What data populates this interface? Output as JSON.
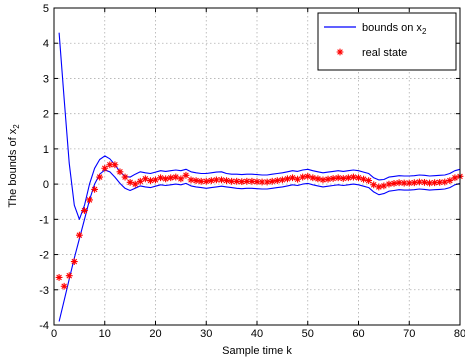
{
  "chart_data": {
    "type": "line",
    "title": "",
    "xlabel": "Sample time k",
    "ylabel": "The bounds of x",
    "ylabel_subscript": "2",
    "xlim": [
      0,
      80
    ],
    "ylim": [
      -4,
      5
    ],
    "xticks": [
      "0",
      "10",
      "20",
      "30",
      "40",
      "50",
      "60",
      "70",
      "80"
    ],
    "yticks": [
      "-4",
      "-3",
      "-2",
      "-1",
      "0",
      "1",
      "2",
      "3",
      "4",
      "5"
    ],
    "grid": true,
    "legend_position": "top-right",
    "colors": {
      "bounds": "#0000ff",
      "real_state": "#ff0000"
    },
    "x": [
      1,
      2,
      3,
      4,
      5,
      6,
      7,
      8,
      9,
      10,
      11,
      12,
      13,
      14,
      15,
      16,
      17,
      18,
      19,
      20,
      21,
      22,
      23,
      24,
      25,
      26,
      27,
      28,
      29,
      30,
      31,
      32,
      33,
      34,
      35,
      36,
      37,
      38,
      39,
      40,
      41,
      42,
      43,
      44,
      45,
      46,
      47,
      48,
      49,
      50,
      51,
      52,
      53,
      54,
      55,
      56,
      57,
      58,
      59,
      60,
      61,
      62,
      63,
      64,
      65,
      66,
      67,
      68,
      69,
      70,
      71,
      72,
      73,
      74,
      75,
      76,
      77,
      78,
      79,
      80
    ],
    "series": [
      {
        "name": "bounds on x",
        "name_subscript": "2",
        "kind": "upper-bound",
        "marker": "line",
        "values": [
          4.3,
          2.4,
          0.6,
          -0.6,
          -1.0,
          -0.6,
          0.0,
          0.45,
          0.7,
          0.8,
          0.72,
          0.55,
          0.35,
          0.22,
          0.2,
          0.28,
          0.35,
          0.32,
          0.3,
          0.34,
          0.38,
          0.36,
          0.38,
          0.4,
          0.38,
          0.42,
          0.35,
          0.32,
          0.3,
          0.3,
          0.32,
          0.34,
          0.35,
          0.3,
          0.28,
          0.28,
          0.27,
          0.28,
          0.28,
          0.27,
          0.26,
          0.26,
          0.28,
          0.3,
          0.32,
          0.35,
          0.38,
          0.36,
          0.4,
          0.42,
          0.38,
          0.35,
          0.32,
          0.34,
          0.36,
          0.38,
          0.36,
          0.38,
          0.4,
          0.38,
          0.34,
          0.3,
          0.18,
          0.12,
          0.13,
          0.2,
          0.22,
          0.24,
          0.23,
          0.23,
          0.24,
          0.26,
          0.25,
          0.23,
          0.24,
          0.25,
          0.26,
          0.3,
          0.38,
          0.42
        ]
      },
      {
        "kind": "lower-bound",
        "marker": "line",
        "values": [
          -3.9,
          -3.3,
          -2.7,
          -2.1,
          -1.55,
          -1.0,
          -0.45,
          0.0,
          0.28,
          0.4,
          0.35,
          0.2,
          0.02,
          -0.12,
          -0.18,
          -0.12,
          -0.05,
          -0.08,
          -0.1,
          -0.06,
          -0.02,
          -0.04,
          -0.02,
          0.0,
          -0.02,
          0.02,
          -0.05,
          -0.08,
          -0.1,
          -0.12,
          -0.1,
          -0.08,
          -0.06,
          -0.08,
          -0.1,
          -0.12,
          -0.13,
          -0.12,
          -0.12,
          -0.13,
          -0.14,
          -0.14,
          -0.12,
          -0.1,
          -0.08,
          -0.05,
          -0.02,
          -0.04,
          0.0,
          0.02,
          -0.02,
          -0.05,
          -0.08,
          -0.06,
          -0.04,
          -0.02,
          -0.04,
          -0.02,
          0.0,
          -0.02,
          -0.06,
          -0.1,
          -0.22,
          -0.3,
          -0.27,
          -0.2,
          -0.18,
          -0.16,
          -0.17,
          -0.17,
          -0.16,
          -0.14,
          -0.15,
          -0.17,
          -0.16,
          -0.15,
          -0.14,
          -0.1,
          -0.02,
          0.02
        ]
      },
      {
        "name": "real state",
        "kind": "points",
        "marker": "star",
        "values": [
          -2.65,
          -2.9,
          -2.6,
          -2.2,
          -1.45,
          -0.75,
          -0.45,
          -0.15,
          0.2,
          0.45,
          0.55,
          0.55,
          0.35,
          0.2,
          0.05,
          0.0,
          0.08,
          0.15,
          0.1,
          0.12,
          0.18,
          0.15,
          0.18,
          0.2,
          0.15,
          0.25,
          0.12,
          0.1,
          0.08,
          0.08,
          0.1,
          0.12,
          0.12,
          0.1,
          0.08,
          0.08,
          0.07,
          0.08,
          0.08,
          0.07,
          0.06,
          0.06,
          0.08,
          0.1,
          0.12,
          0.15,
          0.18,
          0.14,
          0.2,
          0.22,
          0.18,
          0.15,
          0.12,
          0.14,
          0.16,
          0.18,
          0.16,
          0.18,
          0.2,
          0.18,
          0.14,
          0.1,
          -0.02,
          -0.08,
          -0.05,
          0.0,
          0.02,
          0.04,
          0.03,
          0.03,
          0.04,
          0.06,
          0.05,
          0.03,
          0.04,
          0.05,
          0.06,
          0.1,
          0.18,
          0.22
        ]
      }
    ]
  }
}
